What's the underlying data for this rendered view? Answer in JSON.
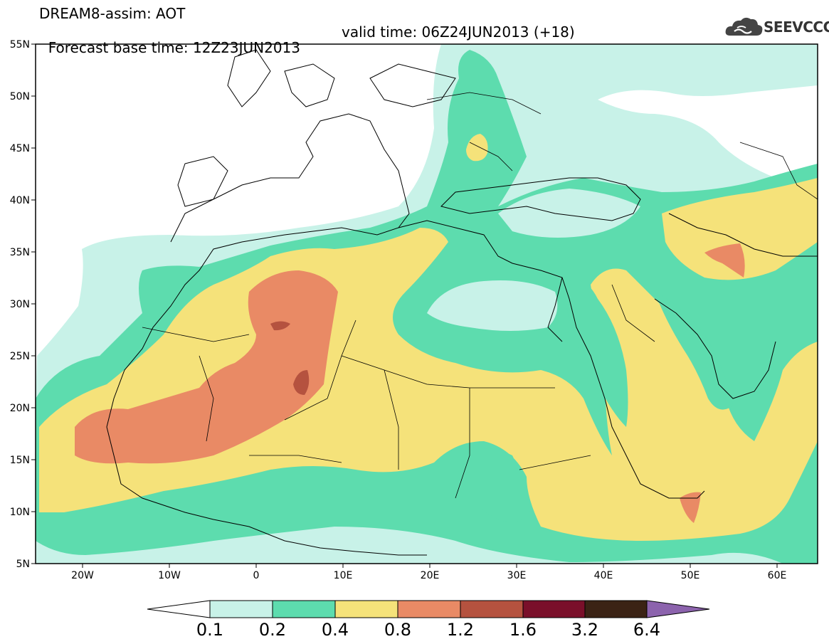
{
  "header": {
    "title_line1": "DREAM8-assim: AOT",
    "title_line2": "Forecast base time: 12Z23JUN2013",
    "valid_time": "valid time: 06Z24JUN2013 (+18)"
  },
  "logo": {
    "text": "SEEVCCC",
    "icon": "cloud-icon"
  },
  "axes": {
    "lat_labels": [
      "55N",
      "50N",
      "45N",
      "40N",
      "35N",
      "30N",
      "25N",
      "20N",
      "15N",
      "10N",
      "5N"
    ],
    "lon_labels": [
      "20W",
      "10W",
      "0",
      "10E",
      "20E",
      "30E",
      "40E",
      "50E",
      "60E"
    ]
  },
  "colorbar": {
    "labels": [
      "0.1",
      "0.2",
      "0.4",
      "0.8",
      "1.2",
      "1.6",
      "3.2",
      "6.4"
    ],
    "colors": [
      "#c8f2e8",
      "#5ddcae",
      "#f5e27a",
      "#e98a65",
      "#b5523f",
      "#7a0f2a",
      "#3b2315",
      "#8c63ad"
    ]
  },
  "colors": {
    "level_01": "#c8f2e8",
    "level_02": "#5ddcae",
    "level_04": "#f5e27a",
    "level_08": "#e98a65",
    "level_12": "#b5523f"
  }
}
